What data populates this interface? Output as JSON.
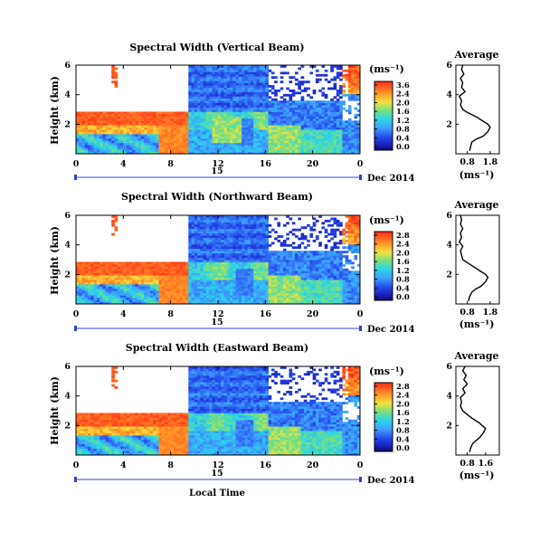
{
  "figure": {
    "date_label": "Dec 2014",
    "day_label": "15",
    "xlabel": "Local Time",
    "avg_title": "Average",
    "avg_xlabel": "(ms⁻¹)",
    "ylabel": "Height (km)",
    "cb_unit": "(ms⁻¹)",
    "colors": {
      "red": "#ff3b1f",
      "orange": "#ff9a2a",
      "yellow": "#f5e03c",
      "green": "#7be07b",
      "cyan": "#2ad6e6",
      "lightblue": "#3f9dff",
      "blue": "#2445e8",
      "darkblue": "#0e0e8c"
    }
  },
  "chart_data": [
    {
      "type": "heatmap",
      "title": "Spectral Width (Vertical Beam)",
      "xlabel": "Local Time",
      "ylabel": "Height (km)",
      "xlim": [
        0,
        24
      ],
      "ylim": [
        0,
        6
      ],
      "xticks": [
        "0",
        "4",
        "8",
        "12",
        "16",
        "20",
        "0"
      ],
      "yticks": [
        "6",
        "4",
        "2"
      ],
      "colorbar": {
        "unit": "(ms⁻¹)",
        "ticks": [
          "3.6",
          "2.4",
          "2.0",
          "1.6",
          "1.2",
          "0.8",
          "0.4",
          "0.0"
        ],
        "range": [
          0,
          3.6
        ]
      },
      "average_profile": {
        "title": "Average",
        "xlabel": "(ms⁻¹)",
        "xticks": [
          "0.8",
          "1.8"
        ],
        "yticks": [
          "6",
          "4",
          "2"
        ],
        "height_km": [
          0.2,
          0.5,
          0.8,
          1.0,
          1.2,
          1.5,
          1.8,
          2.0,
          2.2,
          2.5,
          2.8,
          3.0,
          3.3,
          3.6,
          3.9,
          4.2,
          4.5,
          4.8,
          5.1,
          5.4,
          5.7,
          6.0
        ],
        "width_ms": [
          0.9,
          0.95,
          1.0,
          1.2,
          1.5,
          1.7,
          1.8,
          1.7,
          1.5,
          1.2,
          0.8,
          0.6,
          0.5,
          0.55,
          0.45,
          0.7,
          0.55,
          0.6,
          0.5,
          0.65,
          0.55,
          0.6
        ]
      }
    },
    {
      "type": "heatmap",
      "title": "Spectral Width (Northward Beam)",
      "xlabel": "Local Time",
      "ylabel": "Height (km)",
      "xlim": [
        0,
        24
      ],
      "ylim": [
        0,
        6
      ],
      "xticks": [
        "0",
        "4",
        "8",
        "12",
        "16",
        "20",
        "0"
      ],
      "yticks": [
        "6",
        "4",
        "2"
      ],
      "colorbar": {
        "unit": "(ms⁻¹)",
        "ticks": [
          "2.8",
          "2.4",
          "2.0",
          "1.6",
          "1.2",
          "0.8",
          "0.4",
          "0.0"
        ],
        "range": [
          0,
          2.8
        ]
      },
      "average_profile": {
        "title": "Average",
        "xlabel": "(ms⁻¹)",
        "xticks": [
          "0.8",
          "1.8"
        ],
        "yticks": [
          "6",
          "4",
          "2"
        ],
        "height_km": [
          0.2,
          0.5,
          0.8,
          1.0,
          1.2,
          1.5,
          1.8,
          2.0,
          2.2,
          2.5,
          2.8,
          3.0,
          3.3,
          3.6,
          3.9,
          4.2,
          4.5,
          4.8,
          5.1,
          5.4,
          5.7,
          6.0
        ],
        "width_ms": [
          0.85,
          0.9,
          1.0,
          1.15,
          1.4,
          1.6,
          1.7,
          1.6,
          1.4,
          1.1,
          0.8,
          0.6,
          0.55,
          0.5,
          0.6,
          0.45,
          0.55,
          0.5,
          0.6,
          0.5,
          0.55,
          0.5
        ]
      }
    },
    {
      "type": "heatmap",
      "title": "Spectral Width (Eastward Beam)",
      "xlabel": "Local Time",
      "ylabel": "Height (km)",
      "xlim": [
        0,
        24
      ],
      "ylim": [
        0,
        6
      ],
      "xticks": [
        "0",
        "4",
        "8",
        "12",
        "16",
        "20",
        "0"
      ],
      "yticks": [
        "6",
        "4",
        "2"
      ],
      "colorbar": {
        "unit": "(ms⁻¹)",
        "ticks": [
          "2.8",
          "2.4",
          "2.0",
          "1.6",
          "1.2",
          "0.8",
          "0.4",
          "0.0"
        ],
        "range": [
          0,
          2.8
        ]
      },
      "average_profile": {
        "title": "Average",
        "xlabel": "(ms⁻¹)",
        "xticks": [
          "0.8",
          "1.6"
        ],
        "yticks": [
          "6",
          "4",
          "2"
        ],
        "height_km": [
          0.2,
          0.5,
          0.8,
          1.0,
          1.2,
          1.5,
          1.8,
          2.0,
          2.2,
          2.5,
          2.8,
          3.0,
          3.3,
          3.6,
          3.9,
          4.2,
          4.5,
          4.8,
          5.1,
          5.4,
          5.7,
          6.0
        ],
        "width_ms": [
          0.9,
          0.95,
          1.05,
          1.2,
          1.35,
          1.5,
          1.6,
          1.45,
          1.3,
          1.0,
          0.75,
          0.6,
          0.5,
          0.55,
          0.5,
          0.7,
          0.6,
          0.8,
          0.65,
          0.75,
          0.6,
          0.7
        ]
      }
    }
  ]
}
